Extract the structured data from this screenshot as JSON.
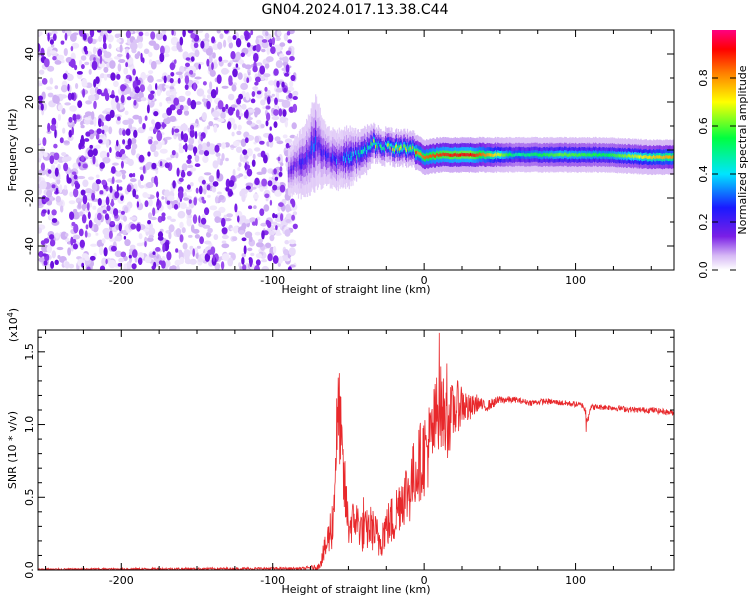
{
  "title": "GN04.2024.017.13.38.C44",
  "chart_data": [
    {
      "type": "heatmap",
      "xlabel": "Height of straight line (km)",
      "ylabel": "Frequency (Hz)",
      "xlim": [
        -255,
        165
      ],
      "ylim": [
        -50,
        50
      ],
      "x_ticks": [
        -200,
        -100,
        0,
        100
      ],
      "y_ticks": [
        -40,
        -20,
        0,
        20,
        40
      ],
      "colorbar": {
        "label": "Normalized spectral amplitude",
        "range": [
          0,
          1
        ],
        "ticks": [
          "0.0",
          "0.2",
          "0.4",
          "0.6",
          "0.8"
        ],
        "tick_values": [
          0.0,
          0.2,
          0.4,
          0.6,
          0.8
        ],
        "colormap": [
          "#ffffff",
          "#d6b8f5",
          "#7a1fe6",
          "#1a1aff",
          "#00e5ff",
          "#00ff40",
          "#ffff00",
          "#ff7f00",
          "#ff0000",
          "#ff0080"
        ]
      },
      "signal_track": {
        "x": [
          -90,
          -80,
          -72,
          -65,
          -58,
          -50,
          -44,
          -38,
          -33,
          -28,
          -22,
          -16,
          -10,
          -5,
          0,
          10,
          30,
          60,
          90,
          120,
          150,
          165
        ],
        "freq": [
          -8,
          -5,
          3,
          -2,
          -4,
          -3,
          -2,
          0,
          3,
          1,
          2,
          0,
          1,
          -1,
          -3,
          -2,
          -2,
          -2,
          -2,
          -2,
          -3,
          -3
        ],
        "width": [
          4,
          6,
          8,
          5,
          5,
          5,
          4,
          4,
          3,
          3,
          3,
          3,
          3,
          3,
          3,
          3,
          3,
          3,
          3,
          3,
          3,
          3
        ],
        "amplitude": [
          0.25,
          0.3,
          0.35,
          0.3,
          0.35,
          0.4,
          0.45,
          0.5,
          0.6,
          0.55,
          0.6,
          0.65,
          0.7,
          0.75,
          0.8,
          0.85,
          0.9,
          0.5,
          0.6,
          0.55,
          0.7,
          0.75
        ]
      },
      "noise_region": {
        "x_from": -255,
        "x_to": -85
      }
    },
    {
      "type": "line",
      "xlabel": "Height of straight line (km)",
      "ylabel": "SNR (10 * v/v)",
      "y_multiplier": "(x10",
      "y_multiplier_exp": "4",
      "y_multiplier_close": ")",
      "xlim": [
        -255,
        165
      ],
      "ylim": [
        0,
        1.65
      ],
      "x_ticks": [
        -200,
        -100,
        0,
        100
      ],
      "y_ticks": [
        "0.0",
        "0.5",
        "1.0",
        "1.5"
      ],
      "y_tick_values": [
        0.0,
        0.5,
        1.0,
        1.5
      ],
      "color": "#e8282b",
      "series": [
        {
          "x": [
            -255,
            -150,
            -80,
            -70,
            -65,
            -60,
            -58,
            -56,
            -54,
            -50,
            -45,
            -40,
            -35,
            -30,
            -25,
            -20,
            -15,
            -10,
            -5,
            0,
            5,
            10,
            15,
            20,
            25,
            30,
            35,
            40,
            50,
            60,
            70,
            80,
            90,
            100,
            105,
            108,
            110,
            120,
            130,
            140,
            150,
            165
          ],
          "y": [
            0.005,
            0.008,
            0.01,
            0.02,
            0.15,
            0.35,
            0.9,
            1.1,
            0.7,
            0.3,
            0.35,
            0.25,
            0.3,
            0.2,
            0.3,
            0.35,
            0.5,
            0.55,
            0.7,
            0.8,
            0.9,
            1.15,
            1.0,
            1.1,
            1.15,
            1.1,
            1.15,
            1.12,
            1.17,
            1.17,
            1.15,
            1.16,
            1.15,
            1.14,
            1.13,
            1.05,
            1.12,
            1.12,
            1.11,
            1.1,
            1.1,
            1.08
          ],
          "noise": [
            0.005,
            0.008,
            0.01,
            0.02,
            0.1,
            0.2,
            0.3,
            0.35,
            0.3,
            0.15,
            0.15,
            0.15,
            0.15,
            0.15,
            0.15,
            0.2,
            0.2,
            0.25,
            0.25,
            0.3,
            0.3,
            0.3,
            0.25,
            0.2,
            0.15,
            0.1,
            0.06,
            0.04,
            0.03,
            0.02,
            0.02,
            0.02,
            0.02,
            0.02,
            0.02,
            0.05,
            0.02,
            0.02,
            0.02,
            0.02,
            0.02,
            0.02
          ],
          "peaks": [
            [
              -55,
              1.19
            ],
            [
              10,
              1.63
            ],
            [
              15,
              1.42
            ],
            [
              -40,
              0.5
            ],
            [
              107,
              0.95
            ]
          ]
        }
      ]
    }
  ]
}
